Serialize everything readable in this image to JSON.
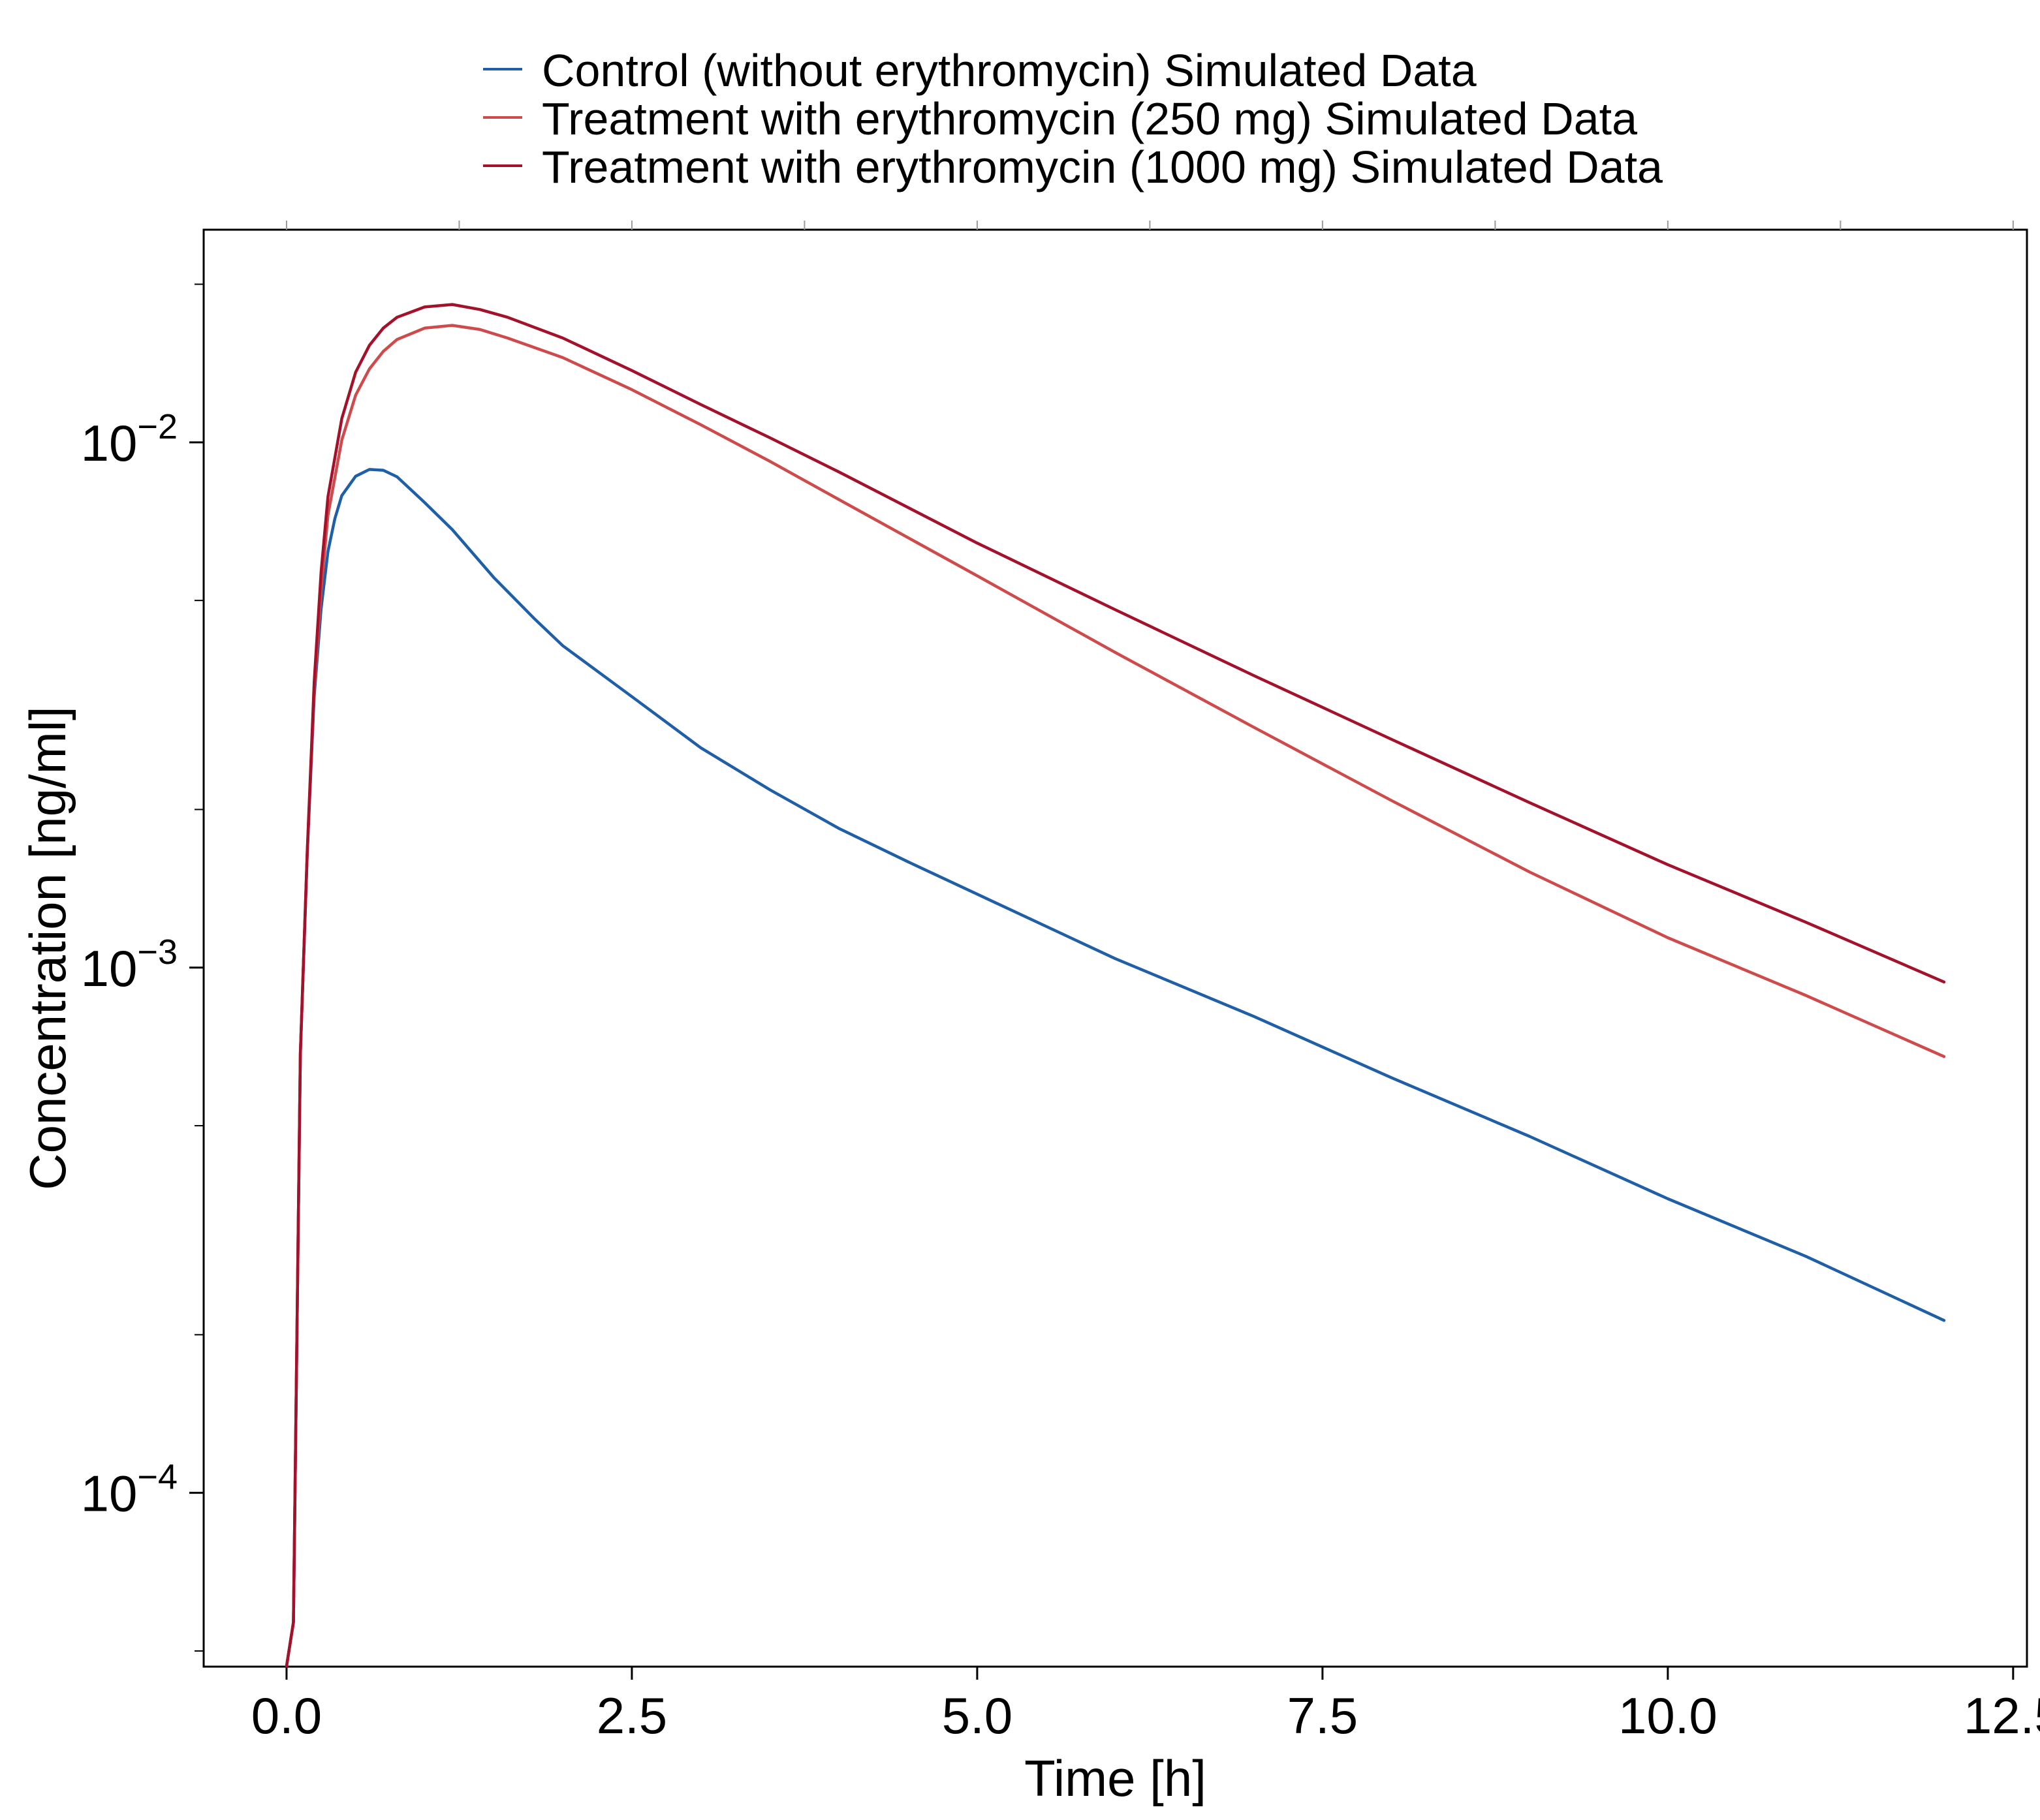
{
  "chart_data": {
    "type": "line",
    "title": "",
    "xlabel": "Time [h]",
    "ylabel": "Concentration [ng/ml]",
    "x_scale": "linear",
    "y_scale": "log",
    "xlim": [
      -0.6,
      12.6
    ],
    "ylim": [
      4.668e-05,
      0.0254
    ],
    "x_ticks": [
      {
        "value": 0.0,
        "label": "0.0"
      },
      {
        "value": 2.5,
        "label": "2.5"
      },
      {
        "value": 5.0,
        "label": "5.0"
      },
      {
        "value": 7.5,
        "label": "7.5"
      },
      {
        "value": 10.0,
        "label": "10.0"
      },
      {
        "value": 12.5,
        "label": "12.5"
      }
    ],
    "y_major_ticks": [
      {
        "value": 0.0001,
        "base": "10",
        "exponent": "−4"
      },
      {
        "value": 0.001,
        "base": "10",
        "exponent": "−3"
      },
      {
        "value": 0.01,
        "base": "10",
        "exponent": "−2"
      }
    ],
    "y_minor_ticks": [
      5e-05,
      0.0002,
      0.0005,
      0.002,
      0.005,
      0.02
    ],
    "grid": false,
    "legend_position": "top-center",
    "series": [
      {
        "name": "Control (without erythromycin) Simulated Data",
        "color": "#1f5fa8",
        "x": [
          0,
          0.05,
          0.1,
          0.15,
          0.2,
          0.25,
          0.3,
          0.35,
          0.4,
          0.5,
          0.6,
          0.7,
          0.8,
          1.0,
          1.2,
          1.5,
          1.8,
          2.0,
          2.5,
          3.0,
          3.5,
          4.0,
          4.5,
          5.0,
          6.0,
          7.0,
          8.0,
          9.0,
          10.0,
          11.0,
          12.0
        ],
        "y": [
          4.68e-05,
          5.67e-05,
          0.000685,
          0.00165,
          0.00328,
          0.00482,
          0.0062,
          0.00716,
          0.00792,
          0.00862,
          0.00888,
          0.00885,
          0.0086,
          0.00768,
          0.00682,
          0.00553,
          0.0046,
          0.0041,
          0.00328,
          0.00262,
          0.00218,
          0.00184,
          0.00159,
          0.00138,
          0.00104,
          0.000808,
          0.000617,
          0.000477,
          0.000363,
          0.000282,
          0.000213
        ]
      },
      {
        "name": "Treatment with erythromycin (250 mg) Simulated Data",
        "color": "#cf4a4a",
        "x": [
          0,
          0.05,
          0.1,
          0.15,
          0.2,
          0.25,
          0.3,
          0.4,
          0.5,
          0.6,
          0.7,
          0.8,
          1.0,
          1.2,
          1.4,
          1.6,
          2.0,
          2.5,
          3.0,
          3.5,
          4.0,
          5.0,
          6.0,
          7.0,
          8.0,
          9.0,
          10.0,
          11.0,
          12.0
        ],
        "y": [
          4.68e-05,
          5.67e-05,
          0.000685,
          0.00166,
          0.00338,
          0.00525,
          0.00727,
          0.0101,
          0.0123,
          0.0138,
          0.0149,
          0.0157,
          0.0165,
          0.0167,
          0.0164,
          0.0158,
          0.0145,
          0.0126,
          0.0108,
          0.0092,
          0.00778,
          0.00557,
          0.00398,
          0.00287,
          0.00208,
          0.00152,
          0.00114,
          0.000885,
          0.000677
        ]
      },
      {
        "name": "Treatment with erythromycin (1000 mg) Simulated Data",
        "color": "#a3122a",
        "x": [
          0,
          0.05,
          0.1,
          0.15,
          0.2,
          0.25,
          0.3,
          0.4,
          0.5,
          0.6,
          0.7,
          0.8,
          1.0,
          1.2,
          1.4,
          1.6,
          2.0,
          2.5,
          3.0,
          3.5,
          4.0,
          5.0,
          6.0,
          7.0,
          8.0,
          9.0,
          10.0,
          11.0,
          12.0
        ],
        "y": [
          4.68e-05,
          5.67e-05,
          0.000685,
          0.00167,
          0.0035,
          0.00567,
          0.00788,
          0.0111,
          0.0136,
          0.0153,
          0.0165,
          0.0173,
          0.0181,
          0.0183,
          0.0179,
          0.0173,
          0.0158,
          0.0137,
          0.0118,
          0.0102,
          0.00878,
          0.00643,
          0.0048,
          0.0036,
          0.00272,
          0.00206,
          0.00157,
          0.00122,
          0.000939
        ]
      }
    ]
  }
}
